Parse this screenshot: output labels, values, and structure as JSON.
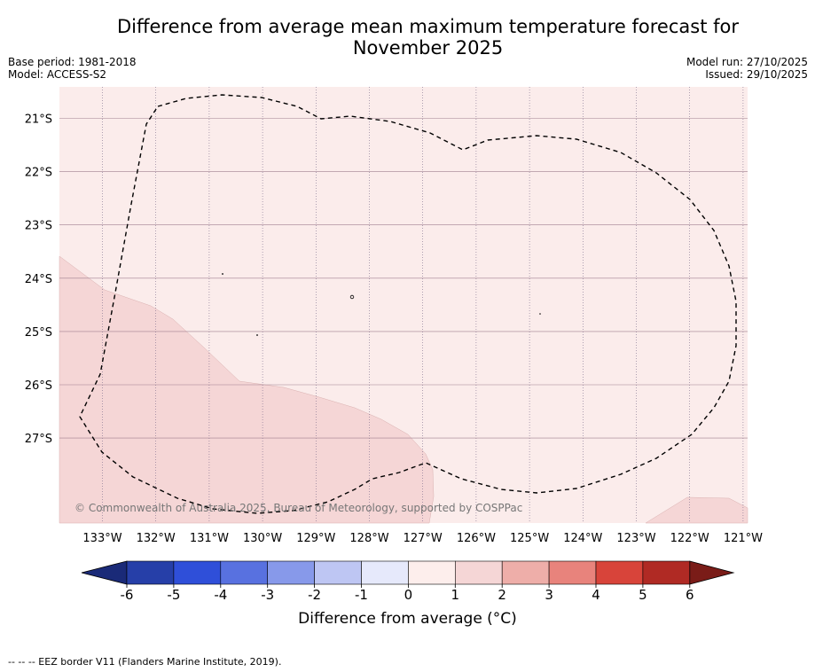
{
  "title_line1": "Difference from average mean maximum temperature forecast for",
  "title_line2": "November 2025",
  "base_period": "Base period: 1981-2018",
  "model": "Model: ACCESS-S2",
  "model_run": "Model run: 27/10/2025",
  "issued": "Issued: 29/10/2025",
  "lon_labels": [
    "133°W",
    "132°W",
    "131°W",
    "130°W",
    "129°W",
    "128°W",
    "127°W",
    "126°W",
    "125°W",
    "124°W",
    "123°W",
    "122°W",
    "121°W"
  ],
  "lat_labels": [
    "21°S",
    "22°S",
    "23°S",
    "24°S",
    "25°S",
    "26°S",
    "27°S"
  ],
  "copyright": "© Commonwealth of Australia 2025, Bureau of Meteorology, supported by COSPPac",
  "colorbar": {
    "ticks": [
      "-6",
      "-5",
      "-4",
      "-3",
      "-2",
      "-1",
      "0",
      "1",
      "2",
      "3",
      "4",
      "5",
      "6"
    ],
    "colors": [
      "#263fa8",
      "#2f4fd9",
      "#5871e0",
      "#8799ea",
      "#bec6f3",
      "#e6e9fb",
      "#fdeeec",
      "#f5d6d6",
      "#eeaea9",
      "#e8837c",
      "#d8443a",
      "#b02a24"
    ],
    "low_extend_color": "#1a2a78",
    "high_extend_color": "#7a1c18",
    "label": "Difference from average (°C)"
  },
  "map_colors": {
    "ocean_bg": "#fbeceb",
    "warm_region": "#f5d6d6"
  },
  "legend_note": "--  --  -- EEZ border V11 (Flanders Marine Institute, 2019)."
}
